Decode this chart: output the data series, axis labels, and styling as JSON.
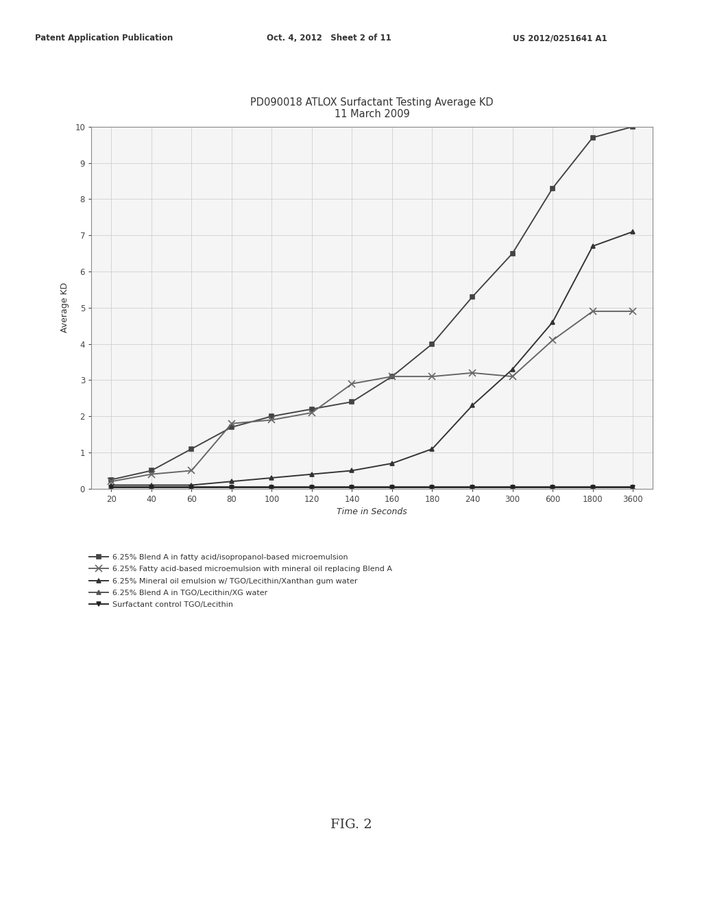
{
  "title_line1": "PD090018 ATLOX Surfactant Testing Average KD",
  "title_line2": "11 March 2009",
  "xlabel": "Time in Seconds",
  "ylabel": "Average KD",
  "x_ticks": [
    20,
    40,
    60,
    80,
    100,
    120,
    140,
    160,
    180,
    240,
    300,
    600,
    1800,
    3600
  ],
  "ylim": [
    0,
    10
  ],
  "yticks": [
    0,
    1,
    2,
    3,
    4,
    5,
    6,
    7,
    8,
    9,
    10
  ],
  "series": [
    {
      "label": "6.25% Blend A in fatty acid/isopropanol-based microemulsion",
      "color": "#444444",
      "marker": "s",
      "markersize": 5,
      "linewidth": 1.4,
      "values": [
        0.25,
        0.5,
        1.1,
        1.7,
        2.0,
        2.2,
        2.4,
        3.1,
        4.0,
        5.3,
        6.5,
        8.3,
        9.7,
        10.0
      ]
    },
    {
      "label": "6.25% Fatty acid-based microemulsion with mineral oil replacing Blend A",
      "color": "#666666",
      "marker": "x",
      "markersize": 7,
      "linewidth": 1.4,
      "values": [
        0.2,
        0.4,
        0.5,
        1.8,
        1.9,
        2.1,
        2.9,
        3.1,
        3.1,
        3.2,
        3.1,
        4.1,
        4.9,
        4.9
      ]
    },
    {
      "label": "6.25% Mineral oil emulsion w/ TGO/Lecithin/Xanthan gum water",
      "color": "#333333",
      "marker": "^",
      "markersize": 5,
      "linewidth": 1.4,
      "values": [
        0.1,
        0.1,
        0.1,
        0.2,
        0.3,
        0.4,
        0.5,
        0.7,
        1.1,
        2.3,
        3.3,
        4.6,
        6.7,
        7.1
      ]
    },
    {
      "label": "6.25% Blend A in TGO/Lecithin/XG water",
      "color": "#555555",
      "marker": "^",
      "markersize": 5,
      "linewidth": 1.4,
      "values": [
        0.05,
        0.05,
        0.05,
        0.05,
        0.05,
        0.05,
        0.05,
        0.05,
        0.05,
        0.05,
        0.05,
        0.05,
        0.05,
        0.05
      ]
    },
    {
      "label": "Surfactant control TGO/Lecithin",
      "color": "#222222",
      "marker": "v",
      "markersize": 5,
      "linewidth": 1.4,
      "values": [
        0.03,
        0.03,
        0.03,
        0.03,
        0.03,
        0.03,
        0.03,
        0.03,
        0.03,
        0.03,
        0.03,
        0.03,
        0.03,
        0.03
      ]
    }
  ],
  "background_color": "#f5f5f5",
  "grid_color": "#c8c8c8",
  "title_fontsize": 10.5,
  "axis_label_fontsize": 9,
  "tick_fontsize": 8.5,
  "legend_fontsize": 8,
  "header_left": "Patent Application Publication",
  "header_mid": "Oct. 4, 2012   Sheet 2 of 11",
  "header_right": "US 2012/0251641 A1",
  "fig_label": "FIG. 2"
}
